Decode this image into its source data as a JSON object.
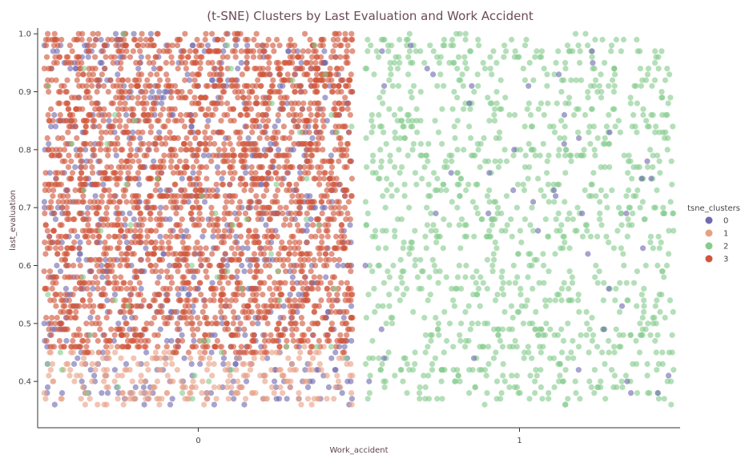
{
  "chart_data": {
    "type": "scatter",
    "title": "(t-SNE) Clusters by Last Evaluation and Work Accident",
    "xlabel": "Work_accident",
    "ylabel": "last_evaluation",
    "x_categories": [
      "0",
      "1"
    ],
    "yticks": [
      "0.4",
      "0.5",
      "0.6",
      "0.7",
      "0.8",
      "0.9",
      "1.0"
    ],
    "ylim": [
      0.32,
      1.01
    ],
    "jitter": true,
    "grid": false,
    "legend": {
      "title": "tsne_clusters",
      "placement": "right",
      "entries": [
        "0",
        "1",
        "2",
        "3"
      ]
    },
    "colors": {
      "0": "#6f6bb0",
      "1": "#e8a084",
      "2": "#86cc8e",
      "3": "#d0553a"
    },
    "series": [
      {
        "name": "0",
        "x_category": "0",
        "y_range": [
          0.36,
          1.0
        ],
        "approx_count": 700
      },
      {
        "name": "1",
        "x_category": "0",
        "y_range": [
          0.36,
          0.46
        ],
        "approx_count": 250
      },
      {
        "name": "3",
        "x_category": "0",
        "y_range": [
          0.45,
          1.0
        ],
        "approx_count": 2600
      },
      {
        "name": "2",
        "x_category": "0",
        "y_range": [
          0.36,
          1.0
        ],
        "approx_count": 60
      },
      {
        "name": "2",
        "x_category": "1",
        "y_range": [
          0.36,
          1.0
        ],
        "approx_count": 1100
      },
      {
        "name": "0",
        "x_category": "1",
        "y_range": [
          0.36,
          1.0
        ],
        "approx_count": 45
      }
    ]
  }
}
